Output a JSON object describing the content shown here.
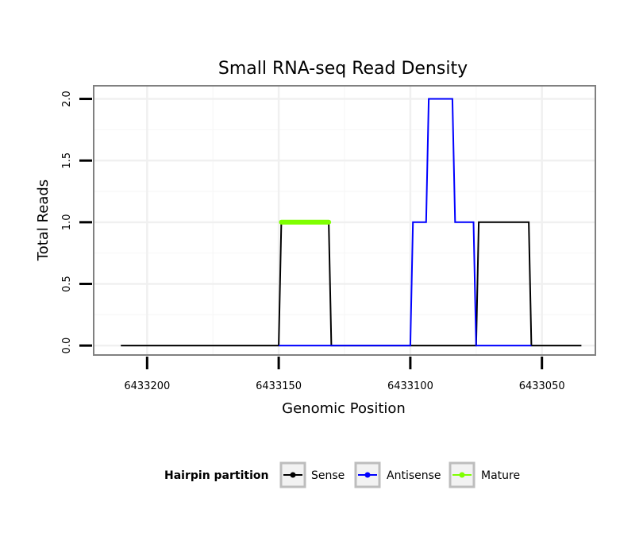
{
  "chart_data": {
    "type": "line",
    "title": "Small RNA-seq Read Density",
    "xlabel": "Genomic Position",
    "ylabel": "Total Reads",
    "x_reversed": true,
    "xlim": [
      6433220,
      6433030
    ],
    "ylim": [
      -0.07,
      2.1
    ],
    "x_ticks": [
      {
        "value": 6433200,
        "label": "6433200"
      },
      {
        "value": 6433150,
        "label": "6433150"
      },
      {
        "value": 6433100,
        "label": "6433100"
      },
      {
        "value": 6433050,
        "label": "6433050"
      }
    ],
    "y_ticks": [
      {
        "value": 0,
        "label": "0.0"
      },
      {
        "value": 0.5,
        "label": "0.5"
      },
      {
        "value": 1,
        "label": "1.0"
      },
      {
        "value": 1.5,
        "label": "1.5"
      },
      {
        "value": 2,
        "label": "2.0"
      }
    ],
    "grid": true,
    "legend": {
      "title": "Hairpin partition",
      "position": "bottom",
      "entries": [
        {
          "name": "Sense",
          "color": "#000000"
        },
        {
          "name": "Antisense",
          "color": "#0000ff"
        },
        {
          "name": "Mature",
          "color": "#7fff00"
        }
      ]
    },
    "series": [
      {
        "name": "Sense",
        "color": "#000000",
        "x": [
          6433210,
          6433150,
          6433149,
          6433131,
          6433130,
          6433075,
          6433074,
          6433055,
          6433054,
          6433035
        ],
        "y": [
          0,
          0,
          1,
          1,
          0,
          0,
          1,
          1,
          0,
          0
        ]
      },
      {
        "name": "Antisense",
        "color": "#0000ff",
        "x": [
          6433150,
          6433100,
          6433099,
          6433094,
          6433093,
          6433084,
          6433083,
          6433076,
          6433075,
          6433054
        ],
        "y": [
          0,
          0,
          1,
          1,
          2,
          2,
          1,
          1,
          0,
          0
        ]
      },
      {
        "name": "Mature",
        "color": "#7fff00",
        "x": [
          6433149,
          6433131
        ],
        "y": [
          1,
          1
        ]
      }
    ]
  }
}
